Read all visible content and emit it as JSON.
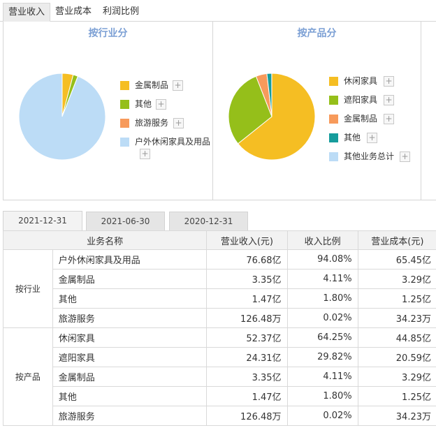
{
  "top_tabs": [
    {
      "label": "营业收入",
      "active": true
    },
    {
      "label": "营业成本",
      "active": false
    },
    {
      "label": "利润比例",
      "active": false
    }
  ],
  "colors": {
    "yellow": "#f5be23",
    "green": "#95bf1a",
    "orange": "#f79a5b",
    "teal": "#169c9c",
    "lightblue": "#bcdcf6",
    "title_blue": "#7b9fd4"
  },
  "industry_panel": {
    "title": "按行业分",
    "legend": [
      {
        "label": "金属制品",
        "color": "#f5be23"
      },
      {
        "label": "其他",
        "color": "#95bf1a"
      },
      {
        "label": "旅游服务",
        "color": "#f79a5b"
      },
      {
        "label": "户外休闲家具及用品",
        "color": "#bcdcf6"
      }
    ]
  },
  "product_panel": {
    "title": "按产品分",
    "legend": [
      {
        "label": "休闲家具",
        "color": "#f5be23"
      },
      {
        "label": "遮阳家具",
        "color": "#95bf1a"
      },
      {
        "label": "金属制品",
        "color": "#f79a5b"
      },
      {
        "label": "其他",
        "color": "#169c9c"
      },
      {
        "label": "其他业务总计",
        "color": "#bcdcf6"
      }
    ]
  },
  "chart_data": [
    {
      "type": "pie",
      "title": "按行业分",
      "categories": [
        "户外休闲家具及用品",
        "金属制品",
        "其他",
        "旅游服务"
      ],
      "values": [
        94.08,
        4.11,
        1.8,
        0.02
      ]
    },
    {
      "type": "pie",
      "title": "按产品分",
      "categories": [
        "休闲家具",
        "遮阳家具",
        "金属制品",
        "其他",
        "其他业务总计"
      ],
      "values": [
        64.25,
        29.82,
        4.11,
        1.8,
        0.02
      ]
    }
  ],
  "date_tabs": [
    {
      "label": "2021-12-31",
      "active": true
    },
    {
      "label": "2021-06-30",
      "active": false
    },
    {
      "label": "2020-12-31",
      "active": false
    }
  ],
  "table": {
    "headers": [
      "业务名称",
      "营业收入(元)",
      "收入比例",
      "营业成本(元)"
    ],
    "groups": [
      {
        "label": "按行业",
        "rows": [
          {
            "name": "户外休闲家具及用品",
            "revenue": "76.68亿",
            "ratio": "94.08%",
            "cost": "65.45亿"
          },
          {
            "name": "金属制品",
            "revenue": "3.35亿",
            "ratio": "4.11%",
            "cost": "3.29亿"
          },
          {
            "name": "其他",
            "revenue": "1.47亿",
            "ratio": "1.80%",
            "cost": "1.25亿"
          },
          {
            "name": "旅游服务",
            "revenue": "126.48万",
            "ratio": "0.02%",
            "cost": "34.23万"
          }
        ]
      },
      {
        "label": "按产品",
        "rows": [
          {
            "name": "休闲家具",
            "revenue": "52.37亿",
            "ratio": "64.25%",
            "cost": "44.85亿"
          },
          {
            "name": "遮阳家具",
            "revenue": "24.31亿",
            "ratio": "29.82%",
            "cost": "20.59亿"
          },
          {
            "name": "金属制品",
            "revenue": "3.35亿",
            "ratio": "4.11%",
            "cost": "3.29亿"
          },
          {
            "name": "其他",
            "revenue": "1.47亿",
            "ratio": "1.80%",
            "cost": "1.25亿"
          },
          {
            "name": "旅游服务",
            "revenue": "126.48万",
            "ratio": "0.02%",
            "cost": "34.23万"
          }
        ]
      }
    ]
  }
}
